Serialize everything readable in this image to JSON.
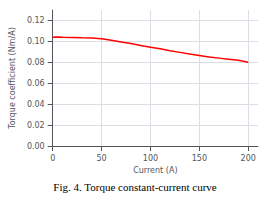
{
  "chart_data": {
    "type": "line",
    "title": "Fig. 4. Torque constant-current curve",
    "xlabel": "Current (A)",
    "ylabel": "Torque coefficient (Nm/A)",
    "x": [
      0,
      5,
      10,
      20,
      30,
      40,
      50,
      60,
      70,
      80,
      90,
      100,
      110,
      120,
      130,
      140,
      150,
      160,
      170,
      180,
      190,
      200
    ],
    "values": [
      0.104,
      0.1042,
      0.104,
      0.1038,
      0.1035,
      0.1033,
      0.1025,
      0.101,
      0.0995,
      0.098,
      0.096,
      0.0945,
      0.093,
      0.091,
      0.0895,
      0.088,
      0.0865,
      0.085,
      0.084,
      0.083,
      0.082,
      0.08
    ],
    "color": "#ff0000",
    "xlim": [
      0,
      210
    ],
    "ylim": [
      0.0,
      0.13
    ],
    "xticks": [
      0,
      50,
      100,
      150,
      200
    ],
    "yticks": [
      {
        "value": 0,
        "label": "0.00"
      },
      {
        "value": 0.02,
        "label": "0.02"
      },
      {
        "value": 0.04,
        "label": "0.04"
      },
      {
        "value": 0.06,
        "label": "0.06"
      },
      {
        "value": 0.08,
        "label": "0.08"
      },
      {
        "value": 0.1,
        "label": "0.10"
      },
      {
        "value": 0.12,
        "label": "0.12"
      }
    ],
    "grid": true
  }
}
